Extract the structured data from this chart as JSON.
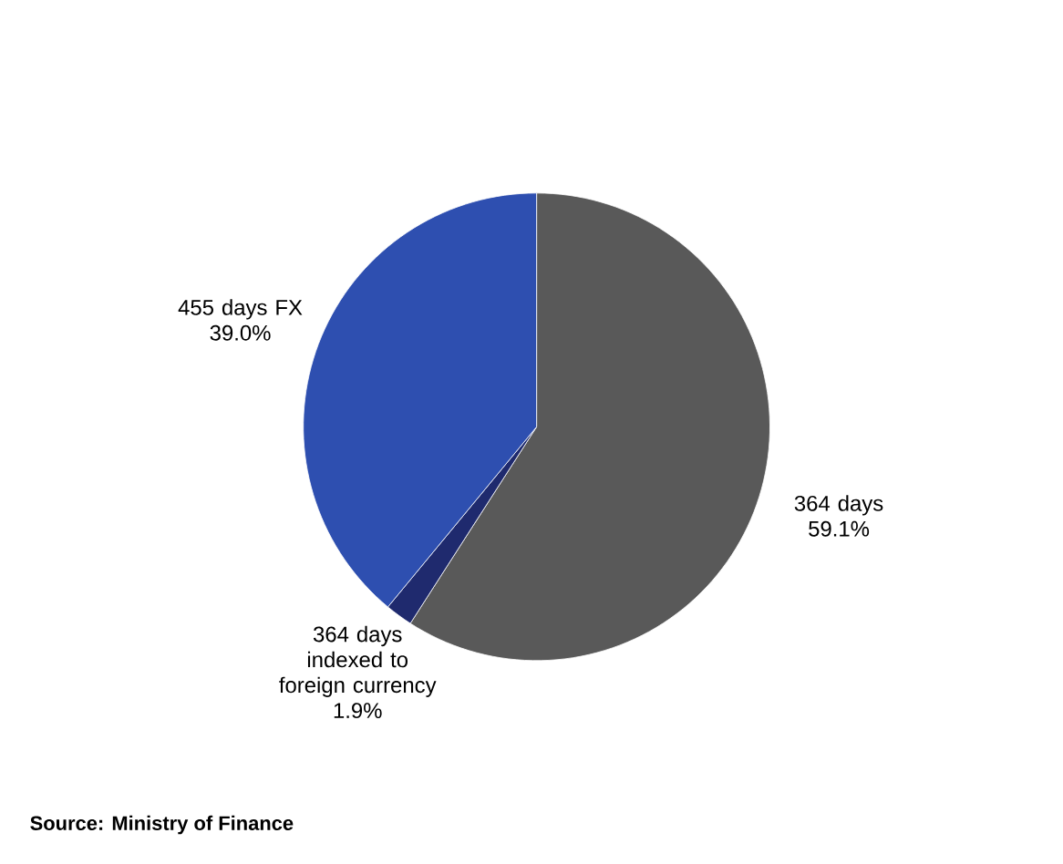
{
  "chart_data": {
    "type": "pie",
    "categories": [
      "364 days",
      "364 days indexed to foreign currency",
      "455 days FX"
    ],
    "values": [
      59.1,
      1.9,
      39.0
    ],
    "value_labels": [
      "59.1%",
      "1.9%",
      "39.0%"
    ],
    "colors": [
      "#595959",
      "#1f2a6e",
      "#2e4fb0"
    ],
    "annotations": [
      "Source: Ministry of Finance"
    ]
  }
}
